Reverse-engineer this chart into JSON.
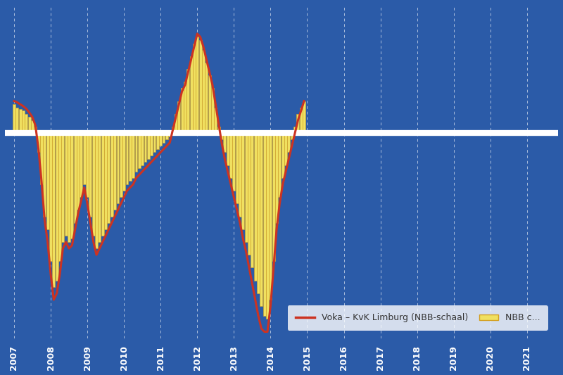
{
  "background_color": "#2B5BA8",
  "bar_color": "#F0E060",
  "bar_edge_color": "#D4A020",
  "line_color": "#CC3322",
  "zero_line_color": "#FFFFFF",
  "grid_color": "#FFFFFF",
  "tick_color": "#FFFFFF",
  "legend_bg": "#FFFFFF",
  "legend_text_color": "#333333",
  "figsize": [
    8.0,
    5.33
  ],
  "dpi": 100,
  "ylim": [
    -32,
    20
  ],
  "legend_label_line": "Voka – KvK Limburg (NBB-schaal)",
  "legend_label_bar": "NBB c...",
  "nbb": [
    4.5,
    4.0,
    3.8,
    3.5,
    3.0,
    2.5,
    2.0,
    1.0,
    -3.0,
    -8.0,
    -13.0,
    -15.0,
    -20.0,
    -24.0,
    -23.0,
    -20.0,
    -17.0,
    -16.0,
    -17.0,
    -16.5,
    -14.0,
    -12.0,
    -10.0,
    -8.0,
    -10.0,
    -13.0,
    -16.0,
    -18.0,
    -17.0,
    -16.0,
    -15.0,
    -14.0,
    -13.0,
    -12.0,
    -11.0,
    -10.0,
    -9.0,
    -8.0,
    -7.5,
    -7.0,
    -6.0,
    -5.5,
    -5.0,
    -4.5,
    -4.0,
    -3.5,
    -3.0,
    -2.5,
    -2.0,
    -1.5,
    -1.0,
    -0.5,
    1.0,
    3.0,
    5.0,
    7.0,
    8.0,
    10.0,
    12.0,
    14.0,
    15.0,
    14.5,
    13.0,
    11.0,
    9.0,
    7.0,
    4.0,
    1.0,
    -1.0,
    -3.0,
    -5.0,
    -7.0,
    -9.0,
    -11.0,
    -13.0,
    -15.0,
    -17.0,
    -19.0,
    -21.0,
    -23.0,
    -25.0,
    -27.0,
    -28.5,
    -29.0,
    -26.0,
    -20.0,
    -14.0,
    -10.0,
    -7.0,
    -5.0,
    -3.0,
    -1.0,
    1.0,
    3.0,
    4.0,
    5.0
  ],
  "voka": [
    5.0,
    4.8,
    4.5,
    4.2,
    3.8,
    3.2,
    2.5,
    1.2,
    -2.5,
    -7.5,
    -13.5,
    -17.0,
    -22.0,
    -26.0,
    -25.0,
    -22.0,
    -18.0,
    -17.0,
    -18.0,
    -17.5,
    -15.0,
    -12.5,
    -10.5,
    -8.5,
    -11.0,
    -14.0,
    -17.0,
    -19.0,
    -18.0,
    -17.0,
    -16.0,
    -15.0,
    -14.0,
    -13.0,
    -12.0,
    -11.0,
    -10.0,
    -9.0,
    -8.5,
    -8.0,
    -7.0,
    -6.5,
    -6.0,
    -5.5,
    -5.0,
    -4.5,
    -4.0,
    -3.5,
    -3.0,
    -2.5,
    -2.0,
    -1.5,
    0.5,
    2.5,
    4.5,
    6.5,
    7.5,
    9.5,
    11.5,
    13.5,
    15.5,
    15.0,
    13.5,
    11.5,
    9.5,
    7.5,
    4.5,
    1.5,
    -1.5,
    -4.0,
    -6.0,
    -8.0,
    -10.0,
    -12.0,
    -14.0,
    -16.5,
    -18.5,
    -21.0,
    -23.5,
    -26.0,
    -28.5,
    -30.5,
    -31.0,
    -31.0,
    -27.0,
    -21.0,
    -15.0,
    -11.0,
    -8.0,
    -6.0,
    -4.0,
    -2.0,
    0.0,
    2.0,
    3.5,
    5.0
  ]
}
